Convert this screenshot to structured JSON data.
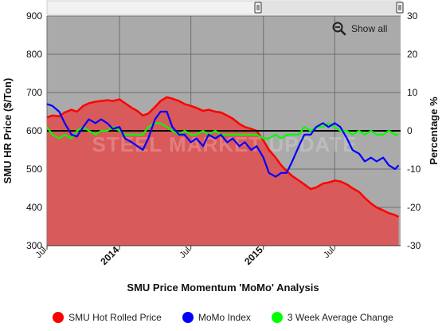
{
  "chart_data": {
    "type": "area",
    "title": "",
    "xlabel": "SMU Price Momentum 'MoMo' Analysis",
    "ylabel": "SMU HR Price ($/Ton)",
    "y2label": "Percentage %",
    "ylim": [
      300,
      900
    ],
    "y2lim": [
      -30,
      30
    ],
    "yticks": [
      "300",
      "400",
      "500",
      "600",
      "700",
      "800",
      "900"
    ],
    "y2ticks": [
      "-30",
      "-20",
      "-10",
      "0",
      "10",
      "20",
      "30"
    ],
    "xlim": [
      "2013-07-01",
      "2015-12-15"
    ],
    "xticks": [
      {
        "date": "2013-07-01",
        "label": "Jul"
      },
      {
        "date": "2014-01-01",
        "label": "2014"
      },
      {
        "date": "2014-07-01",
        "label": "Jul"
      },
      {
        "date": "2015-01-01",
        "label": "2015"
      },
      {
        "date": "2015-07-01",
        "label": "Jul"
      }
    ],
    "grid": true,
    "legend_position": "bottom",
    "watermark": "STEEL MARKET UPDATE",
    "series": [
      {
        "name": "SMU Hot Rolled Price",
        "axis": "left",
        "render": "area",
        "color": "#ff0000",
        "points": [
          [
            "2013-07-01",
            635
          ],
          [
            "2013-07-15",
            640
          ],
          [
            "2013-08-01",
            638
          ],
          [
            "2013-08-15",
            648
          ],
          [
            "2013-09-01",
            655
          ],
          [
            "2013-09-15",
            650
          ],
          [
            "2013-10-01",
            665
          ],
          [
            "2013-10-15",
            672
          ],
          [
            "2013-11-01",
            676
          ],
          [
            "2013-11-15",
            678
          ],
          [
            "2013-12-01",
            680
          ],
          [
            "2013-12-15",
            678
          ],
          [
            "2014-01-01",
            682
          ],
          [
            "2014-01-15",
            672
          ],
          [
            "2014-02-01",
            660
          ],
          [
            "2014-02-15",
            652
          ],
          [
            "2014-03-01",
            640
          ],
          [
            "2014-03-15",
            645
          ],
          [
            "2014-04-01",
            662
          ],
          [
            "2014-04-15",
            678
          ],
          [
            "2014-05-01",
            688
          ],
          [
            "2014-05-15",
            684
          ],
          [
            "2014-06-01",
            678
          ],
          [
            "2014-06-15",
            670
          ],
          [
            "2014-07-01",
            665
          ],
          [
            "2014-07-15",
            660
          ],
          [
            "2014-08-01",
            652
          ],
          [
            "2014-08-15",
            655
          ],
          [
            "2014-09-01",
            650
          ],
          [
            "2014-09-15",
            648
          ],
          [
            "2014-10-01",
            640
          ],
          [
            "2014-10-15",
            632
          ],
          [
            "2014-11-01",
            618
          ],
          [
            "2014-11-15",
            610
          ],
          [
            "2014-12-01",
            605
          ],
          [
            "2014-12-15",
            600
          ],
          [
            "2015-01-01",
            575
          ],
          [
            "2015-01-15",
            550
          ],
          [
            "2015-02-01",
            530
          ],
          [
            "2015-02-15",
            510
          ],
          [
            "2015-03-01",
            495
          ],
          [
            "2015-03-15",
            482
          ],
          [
            "2015-04-01",
            470
          ],
          [
            "2015-04-15",
            460
          ],
          [
            "2015-05-01",
            448
          ],
          [
            "2015-05-15",
            452
          ],
          [
            "2015-06-01",
            462
          ],
          [
            "2015-06-15",
            465
          ],
          [
            "2015-07-01",
            470
          ],
          [
            "2015-07-15",
            468
          ],
          [
            "2015-08-01",
            460
          ],
          [
            "2015-08-15",
            450
          ],
          [
            "2015-09-01",
            440
          ],
          [
            "2015-09-15",
            425
          ],
          [
            "2015-10-01",
            410
          ],
          [
            "2015-10-15",
            400
          ],
          [
            "2015-11-01",
            392
          ],
          [
            "2015-11-15",
            385
          ],
          [
            "2015-12-01",
            380
          ],
          [
            "2015-12-10",
            375
          ]
        ]
      },
      {
        "name": "MoMo Index",
        "axis": "right",
        "render": "line",
        "color": "#0000ff",
        "points": [
          [
            "2013-07-01",
            7
          ],
          [
            "2013-07-15",
            6.5
          ],
          [
            "2013-08-01",
            5
          ],
          [
            "2013-08-15",
            2
          ],
          [
            "2013-09-01",
            -1
          ],
          [
            "2013-09-15",
            -1.5
          ],
          [
            "2013-10-01",
            1
          ],
          [
            "2013-10-15",
            3
          ],
          [
            "2013-11-01",
            2
          ],
          [
            "2013-11-15",
            3
          ],
          [
            "2013-12-01",
            2
          ],
          [
            "2013-12-15",
            0.5
          ],
          [
            "2014-01-01",
            1
          ],
          [
            "2014-01-15",
            -2
          ],
          [
            "2014-02-01",
            -3
          ],
          [
            "2014-02-15",
            -4
          ],
          [
            "2014-03-01",
            -5
          ],
          [
            "2014-03-15",
            -2
          ],
          [
            "2014-04-01",
            3
          ],
          [
            "2014-04-15",
            5
          ],
          [
            "2014-05-01",
            5
          ],
          [
            "2014-05-15",
            1
          ],
          [
            "2014-06-01",
            -1
          ],
          [
            "2014-06-15",
            -1
          ],
          [
            "2014-07-01",
            -3
          ],
          [
            "2014-07-15",
            -2
          ],
          [
            "2014-08-01",
            -4
          ],
          [
            "2014-08-15",
            -1
          ],
          [
            "2014-09-01",
            -2
          ],
          [
            "2014-09-15",
            -1
          ],
          [
            "2014-10-01",
            -3
          ],
          [
            "2014-10-15",
            -2
          ],
          [
            "2014-11-01",
            -4
          ],
          [
            "2014-11-15",
            -3
          ],
          [
            "2014-12-01",
            -5
          ],
          [
            "2014-12-15",
            -4
          ],
          [
            "2015-01-01",
            -7
          ],
          [
            "2015-01-15",
            -11
          ],
          [
            "2015-02-01",
            -12
          ],
          [
            "2015-02-15",
            -11
          ],
          [
            "2015-03-01",
            -11
          ],
          [
            "2015-03-15",
            -8
          ],
          [
            "2015-04-01",
            -4
          ],
          [
            "2015-04-15",
            -1
          ],
          [
            "2015-05-01",
            -1
          ],
          [
            "2015-05-15",
            1
          ],
          [
            "2015-06-01",
            2
          ],
          [
            "2015-06-15",
            1
          ],
          [
            "2015-07-01",
            2
          ],
          [
            "2015-07-15",
            1
          ],
          [
            "2015-08-01",
            -2
          ],
          [
            "2015-08-15",
            -5
          ],
          [
            "2015-09-01",
            -6
          ],
          [
            "2015-09-15",
            -8
          ],
          [
            "2015-10-01",
            -7
          ],
          [
            "2015-10-15",
            -8
          ],
          [
            "2015-11-01",
            -7
          ],
          [
            "2015-11-15",
            -9
          ],
          [
            "2015-12-01",
            -10
          ],
          [
            "2015-12-10",
            -9
          ]
        ]
      },
      {
        "name": "3 Week Average Change",
        "axis": "right",
        "render": "line",
        "color": "#00ff00",
        "points": [
          [
            "2013-07-01",
            1
          ],
          [
            "2013-07-15",
            -1
          ],
          [
            "2013-08-01",
            -2
          ],
          [
            "2013-08-15",
            -1
          ],
          [
            "2013-09-01",
            -2
          ],
          [
            "2013-09-15",
            0
          ],
          [
            "2013-10-01",
            1
          ],
          [
            "2013-10-15",
            0
          ],
          [
            "2013-11-01",
            -1
          ],
          [
            "2013-11-15",
            0
          ],
          [
            "2013-12-01",
            0
          ],
          [
            "2013-12-15",
            1
          ],
          [
            "2014-01-01",
            0
          ],
          [
            "2014-01-15",
            -1
          ],
          [
            "2014-02-01",
            -1
          ],
          [
            "2014-02-15",
            -1
          ],
          [
            "2014-03-01",
            -1
          ],
          [
            "2014-03-15",
            1
          ],
          [
            "2014-04-01",
            2
          ],
          [
            "2014-04-15",
            2
          ],
          [
            "2014-05-01",
            1
          ],
          [
            "2014-05-15",
            0
          ],
          [
            "2014-06-01",
            -1
          ],
          [
            "2014-06-15",
            0
          ],
          [
            "2014-07-01",
            -1
          ],
          [
            "2014-07-15",
            -1
          ],
          [
            "2014-08-01",
            0
          ],
          [
            "2014-08-15",
            -1
          ],
          [
            "2014-09-01",
            0
          ],
          [
            "2014-09-15",
            -1
          ],
          [
            "2014-10-01",
            -1
          ],
          [
            "2014-10-15",
            -1
          ],
          [
            "2014-11-01",
            -1
          ],
          [
            "2014-11-15",
            -1
          ],
          [
            "2014-12-01",
            -1
          ],
          [
            "2014-12-15",
            -1
          ],
          [
            "2015-01-01",
            -2
          ],
          [
            "2015-01-15",
            -2
          ],
          [
            "2015-02-01",
            -1
          ],
          [
            "2015-02-15",
            -2
          ],
          [
            "2015-03-01",
            -1
          ],
          [
            "2015-03-15",
            -1
          ],
          [
            "2015-04-01",
            -1
          ],
          [
            "2015-04-15",
            1
          ],
          [
            "2015-05-01",
            0
          ],
          [
            "2015-05-15",
            1
          ],
          [
            "2015-06-01",
            1
          ],
          [
            "2015-06-15",
            2
          ],
          [
            "2015-07-01",
            1
          ],
          [
            "2015-07-15",
            0
          ],
          [
            "2015-08-01",
            0
          ],
          [
            "2015-08-15",
            -1
          ],
          [
            "2015-09-01",
            0
          ],
          [
            "2015-09-15",
            -1
          ],
          [
            "2015-10-01",
            0
          ],
          [
            "2015-10-15",
            -1
          ],
          [
            "2015-11-01",
            -1
          ],
          [
            "2015-11-15",
            0
          ],
          [
            "2015-12-01",
            -1
          ],
          [
            "2015-12-10",
            -1
          ]
        ]
      }
    ]
  },
  "controls": {
    "show_all_label": "Show all",
    "zoom_icon": "zoom-out-magnifier-icon",
    "scroll_handle_icon": "drag-handle-icon"
  },
  "colors": {
    "plot_background": "#aaaaaa",
    "grid": "#6f6f6f",
    "zero_line": "#000000"
  }
}
